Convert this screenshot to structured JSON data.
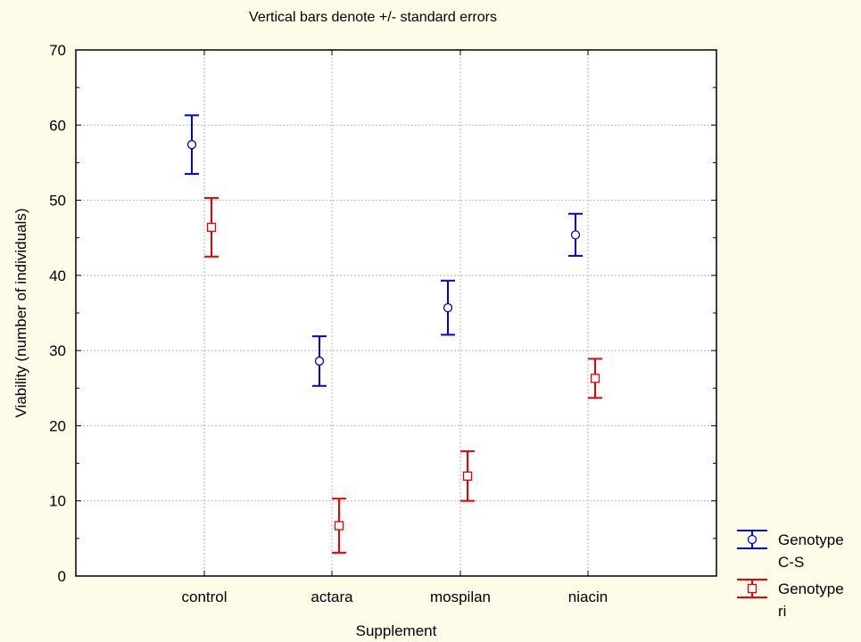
{
  "chart_data": {
    "type": "scatter",
    "title": "Vertical bars denote +/- standard errors",
    "xlabel": "Supplement",
    "ylabel": "Viability (number of individuals)",
    "categories": [
      "control",
      "actara",
      "mospilan",
      "niacin"
    ],
    "ylim": [
      0,
      70
    ],
    "yticks": [
      0,
      10,
      20,
      30,
      40,
      50,
      60,
      70
    ],
    "grid": true,
    "legend_position": "bottom-right outside",
    "series": [
      {
        "name": "Genotype C-S",
        "marker": "circle",
        "color": "#0000dd",
        "values": [
          57.4,
          28.6,
          35.7,
          45.4
        ],
        "errors": [
          3.9,
          3.3,
          3.6,
          2.8
        ]
      },
      {
        "name": "Genotype ri",
        "marker": "square",
        "color": "#ee0000",
        "values": [
          46.4,
          6.7,
          13.3,
          26.3
        ],
        "errors": [
          3.9,
          3.6,
          3.3,
          2.6
        ]
      }
    ]
  }
}
